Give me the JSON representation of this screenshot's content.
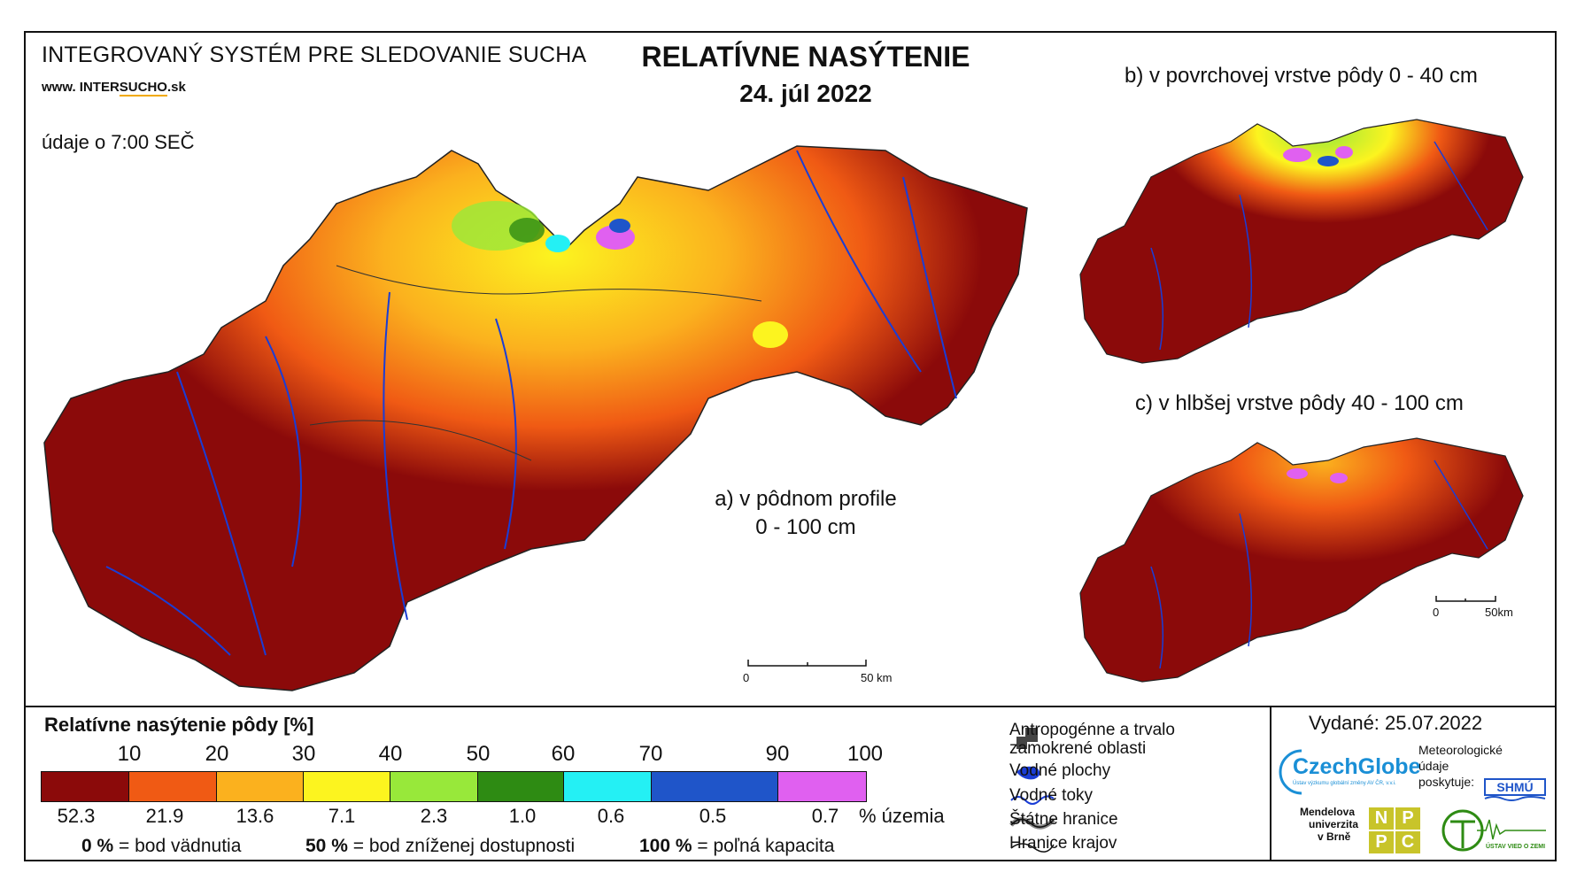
{
  "header": {
    "system_title": "INTEGROVANÝ SYSTÉM PRE SLEDOVANIE SUCHA",
    "website_prefix": "www. INTER",
    "website_highlight": "SUCHO",
    "website_suffix": ".sk",
    "time_note": "údaje o 7:00 SEČ",
    "main_title": "RELATÍVNE NASÝTENIE",
    "date": "24. júl 2022"
  },
  "maps": {
    "a_label_line1": "a) v pôdnom profile",
    "a_label_line2": "0 - 100 cm",
    "b_label": "b) v povrchovej vrstve pôdy 0 - 40 cm",
    "c_label": "c) v hlbšej vrstve pôdy 40 - 100 cm",
    "scale_main_start": "0",
    "scale_main_end": "50 km",
    "scale_small_start": "0",
    "scale_small_end": "50km"
  },
  "legend": {
    "title": "Relatívne nasýtenie pôdy [%]",
    "ticks": [
      "10",
      "20",
      "30",
      "40",
      "50",
      "60",
      "70",
      "90",
      "100"
    ],
    "classes": [
      {
        "color": "#8b0a0a",
        "share": "52.3"
      },
      {
        "color": "#f05a14",
        "share": "21.9"
      },
      {
        "color": "#fbb11e",
        "share": "13.6"
      },
      {
        "color": "#fcf41f",
        "share": "7.1"
      },
      {
        "color": "#98e83a",
        "share": "2.3"
      },
      {
        "color": "#2e8b13",
        "share": "1.0"
      },
      {
        "color": "#24f0f4",
        "share": "0.6"
      },
      {
        "color": "#1f55c9",
        "share": "0.5"
      },
      {
        "color": "#e060f0",
        "share": "0.7"
      }
    ],
    "share_unit": "% územia",
    "definitions": [
      {
        "value": "0 %",
        "text": "= bod vädnutia"
      },
      {
        "value": "50 %",
        "text": "= bod zníženej dostupnosti"
      },
      {
        "value": "100 %",
        "text": "= poľná kapacita"
      }
    ]
  },
  "symbols": {
    "antropogenic_line1": "Antropogénne a trvalo",
    "antropogenic_line2": "zamokrené oblasti",
    "water_areas": "Vodné plochy",
    "water_streams": "Vodné toky",
    "state_border": "Štátne hranice",
    "region_border": "Hranice krajov"
  },
  "credits": {
    "issued": "Vydané: 25.07.2022",
    "czechglobe": "CzechGlobe",
    "czechglobe_sub": "Ústav výzkumu globální změny AV ČR, v.v.i.",
    "meteo_line1": "Meteorologické",
    "meteo_line2": "údaje",
    "meteo_line3": "poskytuje:",
    "shmu": "SHMÚ",
    "mendel_line1": "Mendelova",
    "mendel_line2": "univerzita",
    "mendel_line3": "v Brně",
    "npc_letters": [
      "N",
      "P",
      "P",
      "C"
    ],
    "uvz": "ÚSTAV VIED O ZEMI"
  }
}
